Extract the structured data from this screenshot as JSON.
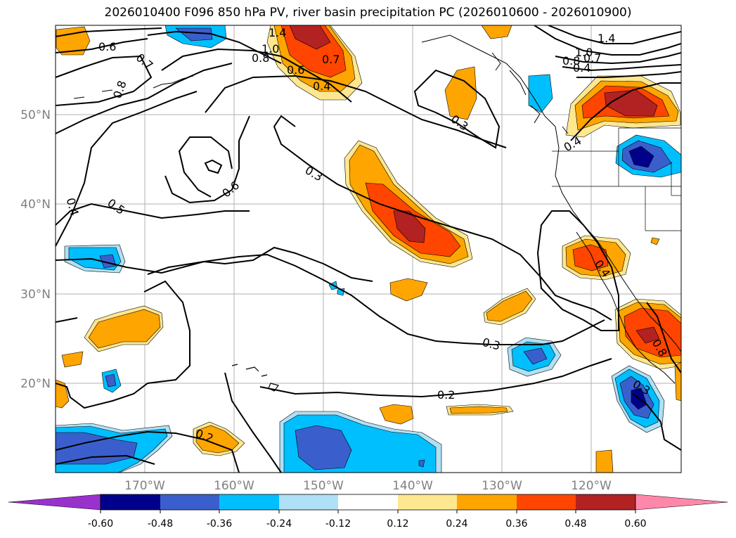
{
  "title": "2026010400 F096 850 hPa PV, river basin precipitation PC (2026010600 - 2026010900)",
  "map": {
    "lat_labels": [
      "50°N",
      "40°N",
      "30°N",
      "20°N"
    ],
    "lon_labels": [
      "170°W",
      "160°W",
      "150°W",
      "140°W",
      "130°W",
      "120°W"
    ],
    "grid": true,
    "contour_labels": [
      "0.6",
      "0.7",
      "0.8",
      "1.4",
      "1.0",
      "0.8",
      "0.6",
      "0.7",
      "0.4",
      "1.4",
      "1.0",
      "0.8",
      "0.7",
      "0.4",
      "0.3",
      "0.3",
      "0.6",
      "0.5",
      "0.4",
      "0.4",
      "0.4",
      "0.3",
      "0.2",
      "0.2",
      "0.3",
      "0.8"
    ]
  },
  "colorbar": {
    "ticks": [
      "-0.60",
      "-0.48",
      "-0.36",
      "-0.24",
      "-0.12",
      "0.12",
      "0.24",
      "0.36",
      "0.48",
      "0.60"
    ],
    "colors": {
      "neg_extend": "#9932cc",
      "neg_060": "#00008b",
      "neg_048": "#3a5fcd",
      "neg_036": "#00bfff",
      "neg_024": "#afe0f5",
      "neutral": "#ffffff",
      "pos_012": "#ffe78f",
      "pos_024": "#ffa500",
      "pos_036": "#ff4500",
      "pos_048": "#b22222",
      "pos_extend": "#ff88aa"
    }
  }
}
